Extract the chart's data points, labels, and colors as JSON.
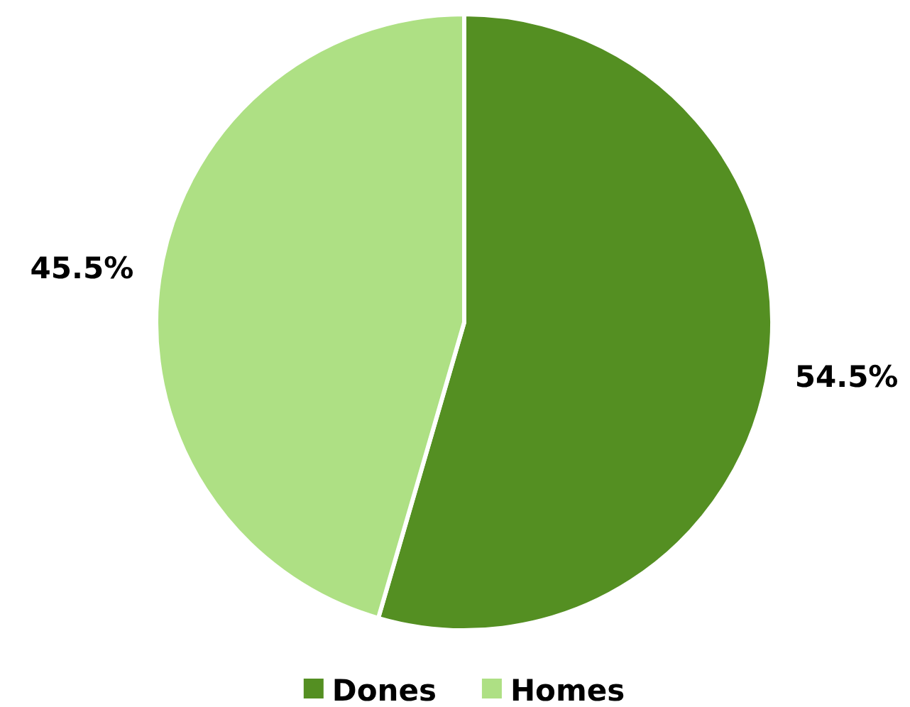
{
  "chart_data": {
    "type": "pie",
    "categories": [
      "Dones",
      "Homes"
    ],
    "values": [
      54.5,
      45.5
    ],
    "colors": [
      "#548f22",
      "#aee084"
    ],
    "value_labels": [
      "54.5%",
      "45.5%"
    ],
    "legend": "bottom"
  }
}
